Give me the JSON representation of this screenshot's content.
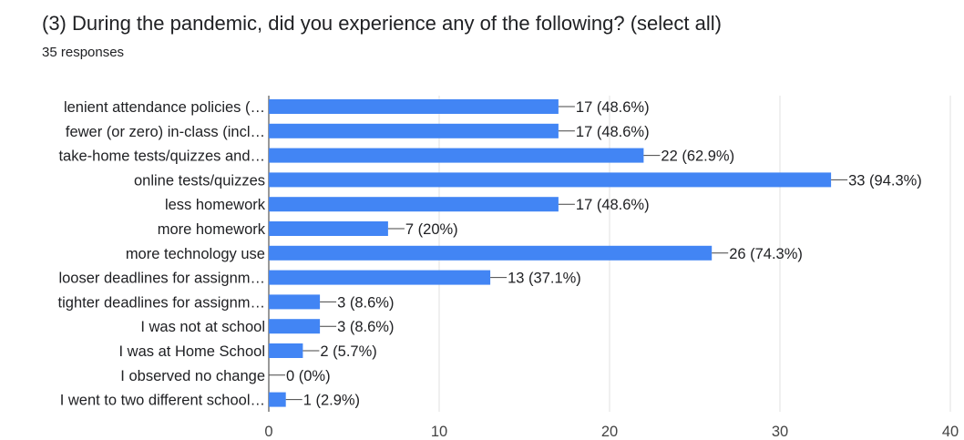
{
  "question": {
    "title": "(3) During the pandemic, did you experience any of the following? (select all)",
    "responses": "35 responses"
  },
  "chart_data": {
    "type": "bar",
    "orientation": "horizontal",
    "title": "(3) During the pandemic, did you experience any of the following? (select all)",
    "subtitle": "35 responses",
    "categories": [
      "lenient attendance policies (…",
      "fewer (or zero) in-class (incl…",
      "take-home tests/quizzes and…",
      "online tests/quizzes",
      "less homework",
      "more homework",
      "more technology use",
      "looser deadlines for assignm…",
      "tighter deadlines for assignm…",
      "I was not at school",
      "I was at Home School",
      "I observed no change",
      "I went to two different school…"
    ],
    "values": [
      17,
      17,
      22,
      33,
      17,
      7,
      26,
      13,
      3,
      3,
      2,
      0,
      1
    ],
    "value_labels": [
      "17 (48.6%)",
      "17 (48.6%)",
      "22 (62.9%)",
      "33 (94.3%)",
      "17 (48.6%)",
      "7 (20%)",
      "26 (74.3%)",
      "13 (37.1%)",
      "3 (8.6%)",
      "3 (8.6%)",
      "2 (5.7%)",
      "0 (0%)",
      "1 (2.9%)"
    ],
    "xlim": [
      0,
      40
    ],
    "xticks": [
      "0",
      "10",
      "20",
      "30",
      "40"
    ],
    "xtick_values": [
      0,
      10,
      20,
      30,
      40
    ],
    "grid": true,
    "bar_color": "#4285f4"
  }
}
